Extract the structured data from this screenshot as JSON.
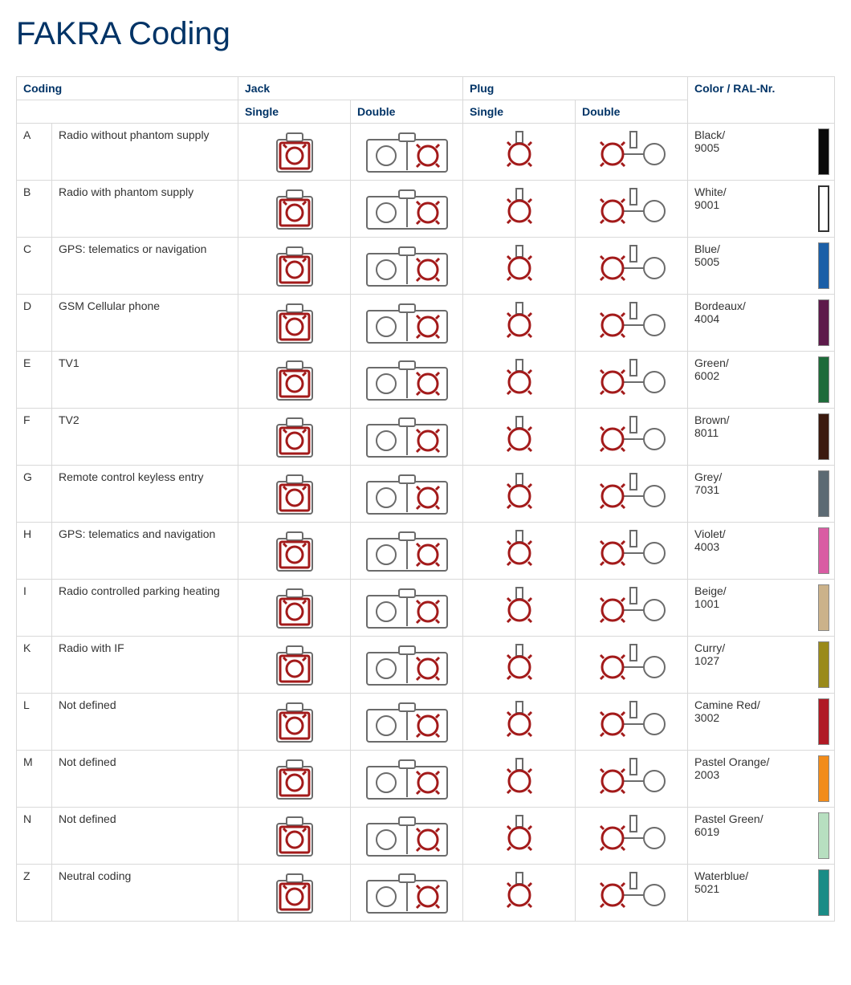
{
  "title": "FAKRA Coding",
  "headers": {
    "coding": "Coding",
    "jack": "Jack",
    "plug": "Plug",
    "single": "Single",
    "double": "Double",
    "color": "Color / RAL-Nr."
  },
  "diagram_style": {
    "stroke": "#6b6b6b",
    "accent": "#a31a1a",
    "stroke_width": 2,
    "accent_width": 3,
    "bg": "#ffffff"
  },
  "rows": [
    {
      "code": "A",
      "desc": "Radio without phantom supply",
      "color_name": "Black/",
      "ral": "9005",
      "swatch": "#0a0a0a"
    },
    {
      "code": "B",
      "desc": "Radio with phantom supply",
      "color_name": "White/",
      "ral": "9001",
      "swatch": "#ffffff",
      "white": true
    },
    {
      "code": "C",
      "desc": "GPS: telematics or navigation",
      "color_name": "Blue/",
      "ral": "5005",
      "swatch": "#1b5fa7"
    },
    {
      "code": "D",
      "desc": "GSM Cellular phone",
      "color_name": "Bordeaux/",
      "ral": "4004",
      "swatch": "#5d1a4a"
    },
    {
      "code": "E",
      "desc": "TV1",
      "color_name": "Green/",
      "ral": "6002",
      "swatch": "#1e6b3a"
    },
    {
      "code": "F",
      "desc": "TV2",
      "color_name": "Brown/",
      "ral": "8011",
      "swatch": "#3b1a0f"
    },
    {
      "code": "G",
      "desc": "Remote control keyless entry",
      "color_name": "Grey/",
      "ral": "7031",
      "swatch": "#5c6a73"
    },
    {
      "code": "H",
      "desc": "GPS: telematics and navigation",
      "color_name": "Violet/",
      "ral": "4003",
      "swatch": "#d95ca3"
    },
    {
      "code": "I",
      "desc": "Radio controlled parking heating",
      "color_name": "Beige/",
      "ral": "1001",
      "swatch": "#cbb28a"
    },
    {
      "code": "K",
      "desc": "Radio with IF",
      "color_name": "Curry/",
      "ral": "1027",
      "swatch": "#9a8a1a"
    },
    {
      "code": "L",
      "desc": "Not defined",
      "color_name": "Camine Red/",
      "ral": "3002",
      "swatch": "#b01a25"
    },
    {
      "code": "M",
      "desc": "Not defined",
      "color_name": "Pastel Orange/",
      "ral": "2003",
      "swatch": "#f28c1a"
    },
    {
      "code": "N",
      "desc": "Not defined",
      "color_name": "Pastel Green/",
      "ral": "6019",
      "swatch": "#b7dfc0"
    },
    {
      "code": "Z",
      "desc": "Neutral coding",
      "color_name": "Waterblue/",
      "ral": "5021",
      "swatch": "#1a8c86"
    }
  ]
}
